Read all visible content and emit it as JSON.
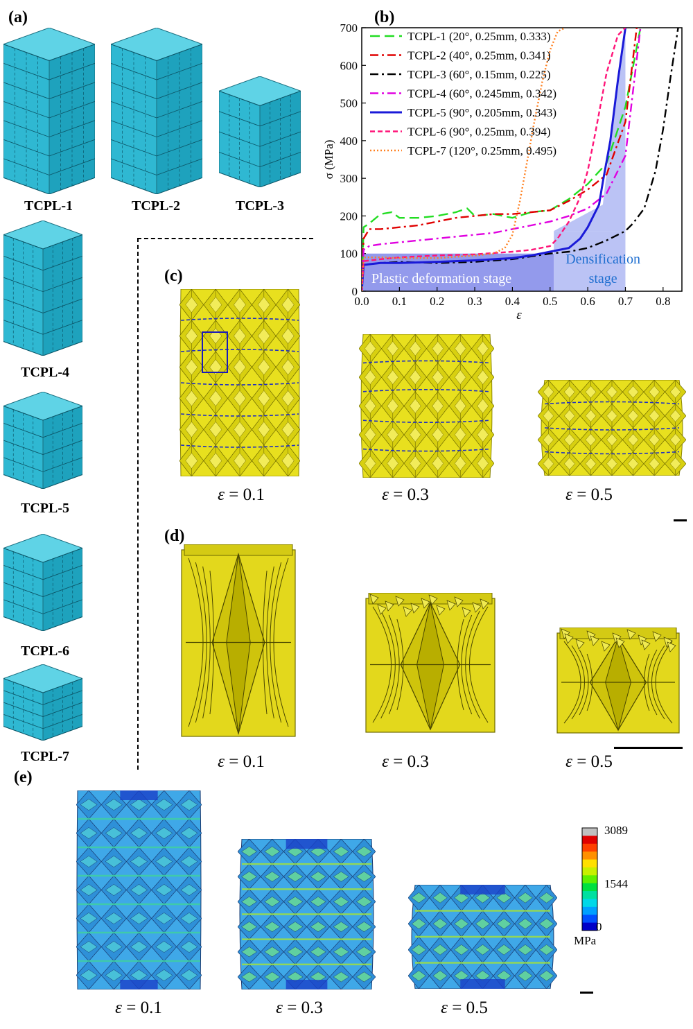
{
  "panels": {
    "a": "(a)",
    "b": "(b)",
    "c": "(c)",
    "d": "(d)",
    "e": "(e)"
  },
  "cubes": [
    "TCPL-1",
    "TCPL-2",
    "TCPL-3",
    "TCPL-4",
    "TCPL-5",
    "TCPL-6",
    "TCPL-7"
  ],
  "strain_labels": [
    "= 0.1",
    "= 0.3",
    "= 0.5"
  ],
  "eps_symbol": "ε",
  "colorbar": {
    "max": "3089",
    "mid": "1544",
    "min": "0",
    "unit": "MPa",
    "colors": [
      "#0000c8",
      "#0050ff",
      "#00a0ff",
      "#00d8e8",
      "#00e0a0",
      "#00e040",
      "#60f000",
      "#c8f000",
      "#ffe000",
      "#ff9000",
      "#ff4000",
      "#e00000",
      "#c0c0c0"
    ]
  },
  "chart_data": {
    "type": "line",
    "xlabel": "ε",
    "ylabel": "σ (MPa)",
    "xlim": [
      0,
      0.85
    ],
    "ylim": [
      0,
      700
    ],
    "xticks": [
      "0.0",
      "0.1",
      "0.2",
      "0.3",
      "0.4",
      "0.5",
      "0.6",
      "0.7",
      "0.8"
    ],
    "yticks": [
      "0",
      "100",
      "200",
      "300",
      "400",
      "500",
      "600",
      "700"
    ],
    "legend_position": "top-left",
    "annotations": [
      "Plastic deformation stage",
      "Densification",
      "stage"
    ],
    "series": [
      {
        "name": "TCPL-1 (20°, 0.25mm, 0.333)",
        "color": "#22dd22",
        "dash": "14,7",
        "x": [
          0,
          0.005,
          0.02,
          0.05,
          0.08,
          0.1,
          0.15,
          0.2,
          0.25,
          0.28,
          0.3,
          0.35,
          0.4,
          0.45,
          0.5,
          0.55,
          0.6,
          0.65,
          0.7,
          0.74
        ],
        "y": [
          0,
          170,
          180,
          205,
          210,
          195,
          195,
          200,
          210,
          220,
          200,
          205,
          195,
          210,
          215,
          245,
          285,
          340,
          490,
          700
        ]
      },
      {
        "name": "TCPL-2 (40°, 0.25mm, 0.341)",
        "color": "#e00000",
        "dash": "12,5,3,5",
        "x": [
          0,
          0.005,
          0.02,
          0.05,
          0.1,
          0.15,
          0.2,
          0.25,
          0.3,
          0.35,
          0.4,
          0.45,
          0.5,
          0.55,
          0.6,
          0.65,
          0.7,
          0.73
        ],
        "y": [
          0,
          140,
          165,
          165,
          170,
          175,
          185,
          195,
          200,
          205,
          205,
          210,
          215,
          240,
          270,
          310,
          450,
          700
        ]
      },
      {
        "name": "TCPL-3 (60°, 0.15mm, 0.225)",
        "color": "#000000",
        "dash": "12,5,3,5",
        "x": [
          0,
          0.005,
          0.05,
          0.1,
          0.2,
          0.3,
          0.4,
          0.5,
          0.55,
          0.6,
          0.65,
          0.7,
          0.72,
          0.75,
          0.78,
          0.8,
          0.82,
          0.84
        ],
        "y": [
          0,
          70,
          75,
          78,
          75,
          78,
          85,
          100,
          105,
          115,
          135,
          160,
          180,
          220,
          320,
          430,
          570,
          700
        ]
      },
      {
        "name": "TCPL-4 (60°, 0.245mm, 0.342)",
        "color": "#e000e0",
        "dash": "12,5,3,5",
        "x": [
          0,
          0.005,
          0.02,
          0.05,
          0.1,
          0.15,
          0.2,
          0.25,
          0.3,
          0.35,
          0.4,
          0.45,
          0.5,
          0.55,
          0.6,
          0.65,
          0.7,
          0.74
        ],
        "y": [
          0,
          110,
          120,
          125,
          130,
          135,
          140,
          145,
          150,
          155,
          165,
          175,
          185,
          200,
          220,
          260,
          360,
          700
        ]
      },
      {
        "name": "TCPL-5 (90°, 0.205mm, 0.343)",
        "color": "#1a1ad8",
        "dash": "",
        "x": [
          0,
          0.005,
          0.05,
          0.1,
          0.2,
          0.3,
          0.4,
          0.45,
          0.5,
          0.55,
          0.58,
          0.6,
          0.62,
          0.63,
          0.64,
          0.66,
          0.68,
          0.7
        ],
        "y": [
          0,
          70,
          75,
          75,
          78,
          82,
          88,
          95,
          105,
          115,
          140,
          170,
          210,
          230,
          290,
          400,
          560,
          700
        ]
      },
      {
        "name": "TCPL-6 (90°, 0.25mm, 0.394)",
        "color": "#ff1478",
        "dash": "7,4",
        "x": [
          0,
          0.005,
          0.05,
          0.1,
          0.2,
          0.3,
          0.4,
          0.45,
          0.5,
          0.52,
          0.55,
          0.58,
          0.6,
          0.62,
          0.65,
          0.68,
          0.7
        ],
        "y": [
          0,
          80,
          85,
          90,
          95,
          98,
          105,
          110,
          120,
          140,
          185,
          250,
          320,
          420,
          580,
          680,
          700
        ]
      },
      {
        "name": "TCPL-7 (120°, 0.25mm, 0.495)",
        "color": "#ff8020",
        "dash": "2,3",
        "x": [
          0,
          0.005,
          0.05,
          0.1,
          0.2,
          0.3,
          0.35,
          0.38,
          0.4,
          0.42,
          0.44,
          0.46,
          0.48,
          0.5,
          0.52,
          0.54
        ],
        "y": [
          0,
          90,
          90,
          88,
          88,
          95,
          100,
          115,
          150,
          240,
          350,
          460,
          560,
          640,
          690,
          700
        ]
      }
    ]
  }
}
